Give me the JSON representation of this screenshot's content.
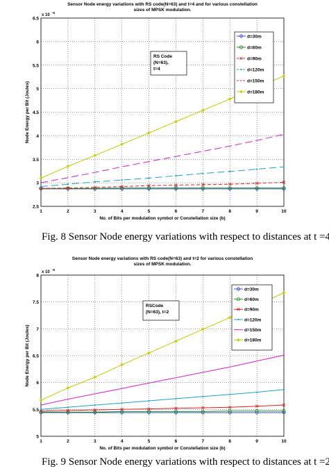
{
  "chart_data": [
    {
      "type": "line",
      "title_line1": "Sensor Node energy variations with RS code(N=63) and t=4 and for various constellation",
      "title_line2": "sizes of MPSK modulation.",
      "xlabel": "No. of Bits per modulation symbol or Constellation size (b)",
      "ylabel": "Node Energy per Bit (Joules)",
      "y_exponent": "x 10",
      "y_exponent_power": "-6",
      "xlim": [
        1,
        10
      ],
      "ylim": [
        2.5,
        6.5
      ],
      "x_ticks": [
        1,
        2,
        3,
        4,
        5,
        6,
        7,
        8,
        9,
        10
      ],
      "y_ticks": [
        2.5,
        3,
        3.5,
        4,
        4.5,
        5,
        5.5,
        6,
        6.5
      ],
      "grid": true,
      "annotation": [
        "RS Code",
        "(N=63),",
        "t=4"
      ],
      "legend_position": "top-right",
      "series": [
        {
          "name": "d=30m",
          "color": "#3b4fd8",
          "dash": "",
          "marker": "diamond",
          "x": [
            1,
            2,
            3,
            4,
            5,
            6,
            7,
            8,
            9,
            10
          ],
          "values": [
            2.87,
            2.87,
            2.87,
            2.87,
            2.87,
            2.87,
            2.87,
            2.87,
            2.87,
            2.87
          ]
        },
        {
          "name": "d=60m",
          "color": "#1f8a1f",
          "dash": "",
          "marker": "circle",
          "x": [
            1,
            2,
            3,
            4,
            5,
            6,
            7,
            8,
            9,
            10
          ],
          "values": [
            2.88,
            2.88,
            2.88,
            2.89,
            2.89,
            2.89,
            2.89,
            2.89,
            2.89,
            2.89
          ]
        },
        {
          "name": "d=90m",
          "color": "#e02020",
          "dash": "5,3",
          "marker": "x",
          "x": [
            1,
            2,
            3,
            4,
            5,
            6,
            7,
            8,
            9,
            10
          ],
          "values": [
            2.88,
            2.89,
            2.9,
            2.92,
            2.94,
            2.95,
            2.96,
            2.97,
            2.99,
            3.01
          ]
        },
        {
          "name": "d=120m",
          "color": "#1aa3c8",
          "dash": "10,5",
          "marker": "dot",
          "x": [
            1,
            2,
            3,
            4,
            5,
            6,
            7,
            8,
            9,
            10
          ],
          "values": [
            2.92,
            2.97,
            3.02,
            3.06,
            3.1,
            3.15,
            3.2,
            3.24,
            3.29,
            3.34
          ]
        },
        {
          "name": "d=150m",
          "color": "#d020d0",
          "dash": "10,5",
          "marker": "none",
          "x": [
            1,
            2,
            3,
            4,
            5,
            6,
            7,
            8,
            9,
            10
          ],
          "values": [
            3.0,
            3.11,
            3.22,
            3.34,
            3.45,
            3.56,
            3.67,
            3.78,
            3.9,
            4.03
          ]
        },
        {
          "name": "d=180m",
          "color": "#c8c800",
          "dash": "",
          "marker": "star",
          "x": [
            1,
            2,
            3,
            4,
            5,
            6,
            7,
            8,
            9,
            10
          ],
          "values": [
            3.1,
            3.35,
            3.58,
            3.82,
            4.06,
            4.3,
            4.54,
            4.78,
            5.02,
            5.27
          ]
        }
      ]
    },
    {
      "type": "line",
      "title_line1": "Sensor Node energy variations with RS code(N=63) and t=2 for various constellation",
      "title_line2": "sizes of MPSK modulation.",
      "xlabel": "No. of Bits per modulation symbol or Constellation size (b)",
      "ylabel": "Node Energy per Bit (Joules)",
      "y_exponent": "x 10",
      "y_exponent_power": "-6",
      "xlim": [
        1,
        10
      ],
      "ylim": [
        5,
        8
      ],
      "x_ticks": [
        1,
        2,
        3,
        4,
        5,
        6,
        7,
        8,
        9,
        10
      ],
      "y_ticks": [
        5,
        5.5,
        6,
        6.5,
        7,
        7.5,
        8
      ],
      "grid": true,
      "annotation": [
        "RSCode",
        "(N=63), t=2"
      ],
      "legend_position": "top-right",
      "series": [
        {
          "name": "d=30m",
          "color": "#3b4fd8",
          "dash": "",
          "marker": "diamond",
          "x": [
            1,
            2,
            3,
            4,
            5,
            6,
            7,
            8,
            9,
            10
          ],
          "values": [
            5.44,
            5.44,
            5.44,
            5.44,
            5.44,
            5.44,
            5.44,
            5.44,
            5.44,
            5.44
          ]
        },
        {
          "name": "d=60m",
          "color": "#1f8a1f",
          "dash": "",
          "marker": "circle",
          "x": [
            1,
            2,
            3,
            4,
            5,
            6,
            7,
            8,
            9,
            10
          ],
          "values": [
            5.45,
            5.45,
            5.45,
            5.46,
            5.46,
            5.46,
            5.46,
            5.47,
            5.47,
            5.47
          ]
        },
        {
          "name": "d=90m",
          "color": "#e02020",
          "dash": "",
          "marker": "x",
          "x": [
            1,
            2,
            3,
            4,
            5,
            6,
            7,
            8,
            9,
            10
          ],
          "values": [
            5.47,
            5.48,
            5.49,
            5.5,
            5.51,
            5.52,
            5.53,
            5.54,
            5.56,
            5.58
          ]
        },
        {
          "name": "d=120m",
          "color": "#1aa3c8",
          "dash": "",
          "marker": "dot",
          "x": [
            1,
            2,
            3,
            4,
            5,
            6,
            7,
            8,
            9,
            10
          ],
          "values": [
            5.5,
            5.54,
            5.58,
            5.62,
            5.66,
            5.7,
            5.74,
            5.78,
            5.82,
            5.87
          ]
        },
        {
          "name": "d=150m",
          "color": "#d020d0",
          "dash": "",
          "marker": "none",
          "x": [
            1,
            2,
            3,
            4,
            5,
            6,
            7,
            8,
            9,
            10
          ],
          "values": [
            5.58,
            5.69,
            5.79,
            5.89,
            5.99,
            6.09,
            6.19,
            6.29,
            6.4,
            6.51
          ]
        },
        {
          "name": "d=180m",
          "color": "#c8c800",
          "dash": "",
          "marker": "star",
          "x": [
            1,
            2,
            3,
            4,
            5,
            6,
            7,
            8,
            9,
            10
          ],
          "values": [
            5.67,
            5.9,
            6.1,
            6.33,
            6.55,
            6.77,
            6.99,
            7.21,
            7.44,
            7.67
          ]
        }
      ]
    }
  ],
  "captions": {
    "fig8": "Fig. 8  Sensor Node energy variations with respect to distances at t =4",
    "fig9": "Fig. 9 Sensor Node energy variations with respect to distances at t =2."
  }
}
